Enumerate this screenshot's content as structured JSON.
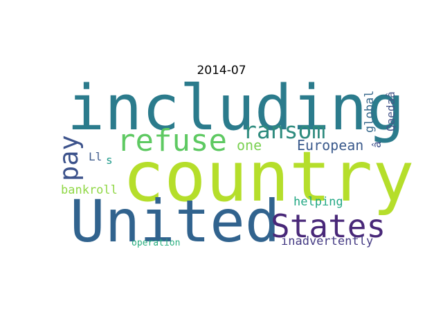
{
  "title": "2014-07",
  "words": [
    {
      "text": "including",
      "color": "#2b7b8c"
    },
    {
      "text": "country",
      "color": "#b5de2b"
    },
    {
      "text": "United",
      "color": "#31638e"
    },
    {
      "text": "States",
      "color": "#482778"
    },
    {
      "text": "refuse",
      "color": "#5ec962"
    },
    {
      "text": "ransom",
      "color": "#2e8b7e"
    },
    {
      "text": "pay",
      "color": "#3c528b"
    },
    {
      "text": "European",
      "color": "#3b5a8c"
    },
    {
      "text": "one",
      "color": "#7ad151"
    },
    {
      "text": "global",
      "color": "#38698c"
    },
    {
      "text": "Qaedaâ",
      "color": "#46568a"
    },
    {
      "text": "â",
      "color": "#3d4f8a"
    },
    {
      "text": "Ll",
      "color": "#3e5a8c"
    },
    {
      "text": "s",
      "color": "#1f9a8a"
    },
    {
      "text": "bankroll",
      "color": "#8fd744"
    },
    {
      "text": "helping",
      "color": "#23a884"
    },
    {
      "text": "inadvertently",
      "color": "#443a83"
    },
    {
      "text": "operation",
      "color": "#29af7f"
    }
  ]
}
